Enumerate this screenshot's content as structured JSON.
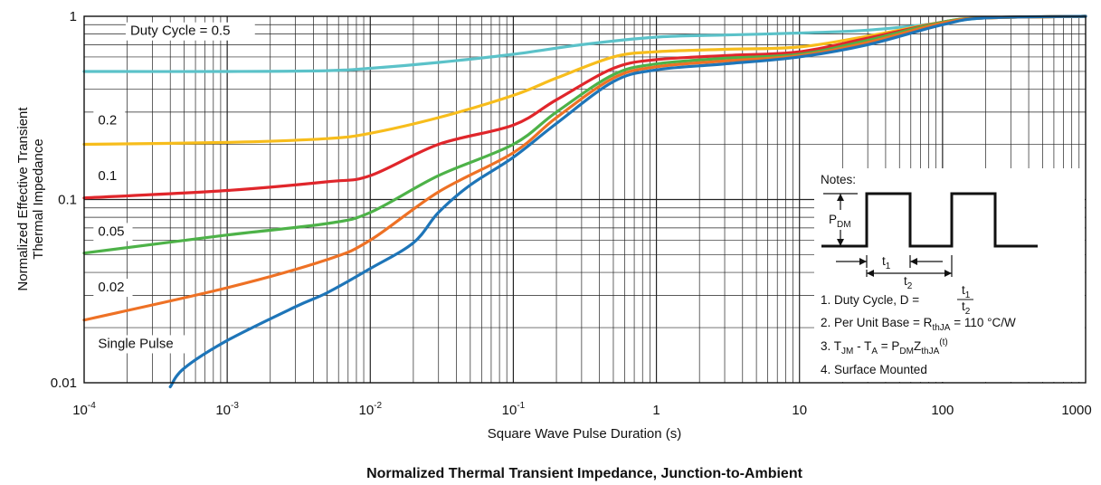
{
  "chart_data": {
    "type": "line",
    "title": "Normalized Thermal Transient Impedance, Junction-to-Ambient",
    "xlabel": "Square Wave Pulse Duration (s)",
    "ylabel_line1": "Normalized Effective Transient",
    "ylabel_line2": "Thermal Impedance",
    "x_scale": "log",
    "y_scale": "log",
    "xlim": [
      0.0001,
      1000
    ],
    "ylim": [
      0.01,
      1
    ],
    "grid": true,
    "x_ticks": [
      {
        "value": 0.0001,
        "base": "10",
        "exp": "-4"
      },
      {
        "value": 0.001,
        "base": "10",
        "exp": "-3"
      },
      {
        "value": 0.01,
        "base": "10",
        "exp": "-2"
      },
      {
        "value": 0.1,
        "base": "10",
        "exp": "-1"
      },
      {
        "value": 1,
        "base": "1",
        "exp": ""
      },
      {
        "value": 10,
        "base": "10",
        "exp": ""
      },
      {
        "value": 100,
        "base": "100",
        "exp": ""
      },
      {
        "value": 1000,
        "base": "1000",
        "exp": ""
      }
    ],
    "y_ticks": [
      {
        "value": 1,
        "label": "1"
      },
      {
        "value": 0.1,
        "label": "0.1"
      },
      {
        "value": 0.01,
        "label": "0.01"
      }
    ],
    "series": [
      {
        "name": "Duty Cycle = 0.5",
        "color": "#5bc2c9",
        "points": [
          [
            0.0001,
            0.5
          ],
          [
            0.001,
            0.5
          ],
          [
            0.005,
            0.505
          ],
          [
            0.01,
            0.52
          ],
          [
            0.03,
            0.56
          ],
          [
            0.1,
            0.62
          ],
          [
            0.3,
            0.7
          ],
          [
            1,
            0.77
          ],
          [
            3,
            0.79
          ],
          [
            10,
            0.81
          ],
          [
            30,
            0.84
          ],
          [
            100,
            0.92
          ],
          [
            200,
            0.98
          ],
          [
            1000,
            1.0
          ]
        ]
      },
      {
        "name": "0.2",
        "color": "#f7bd1c",
        "points": [
          [
            0.0001,
            0.2
          ],
          [
            0.001,
            0.205
          ],
          [
            0.005,
            0.215
          ],
          [
            0.01,
            0.23
          ],
          [
            0.03,
            0.28
          ],
          [
            0.1,
            0.37
          ],
          [
            0.2,
            0.46
          ],
          [
            0.5,
            0.6
          ],
          [
            1,
            0.64
          ],
          [
            3,
            0.66
          ],
          [
            10,
            0.68
          ],
          [
            30,
            0.78
          ],
          [
            100,
            0.93
          ],
          [
            200,
            0.98
          ],
          [
            1000,
            1.0
          ]
        ]
      },
      {
        "name": "0.1",
        "color": "#e0262b",
        "points": [
          [
            0.0001,
            0.102
          ],
          [
            0.001,
            0.112
          ],
          [
            0.005,
            0.125
          ],
          [
            0.01,
            0.135
          ],
          [
            0.03,
            0.2
          ],
          [
            0.1,
            0.255
          ],
          [
            0.2,
            0.35
          ],
          [
            0.5,
            0.52
          ],
          [
            1,
            0.58
          ],
          [
            3,
            0.61
          ],
          [
            10,
            0.64
          ],
          [
            30,
            0.76
          ],
          [
            100,
            0.93
          ],
          [
            200,
            0.98
          ],
          [
            1000,
            1.0
          ]
        ]
      },
      {
        "name": "0.05",
        "color": "#4db248",
        "points": [
          [
            0.0001,
            0.051
          ],
          [
            0.001,
            0.064
          ],
          [
            0.005,
            0.074
          ],
          [
            0.01,
            0.085
          ],
          [
            0.03,
            0.135
          ],
          [
            0.1,
            0.2
          ],
          [
            0.2,
            0.3
          ],
          [
            0.5,
            0.48
          ],
          [
            1,
            0.55
          ],
          [
            3,
            0.59
          ],
          [
            10,
            0.62
          ],
          [
            30,
            0.74
          ],
          [
            100,
            0.93
          ],
          [
            200,
            0.98
          ],
          [
            1000,
            1.0
          ]
        ]
      },
      {
        "name": "0.02",
        "color": "#ee7125",
        "points": [
          [
            0.0001,
            0.022
          ],
          [
            0.001,
            0.033
          ],
          [
            0.005,
            0.047
          ],
          [
            0.01,
            0.06
          ],
          [
            0.03,
            0.11
          ],
          [
            0.1,
            0.18
          ],
          [
            0.2,
            0.28
          ],
          [
            0.5,
            0.46
          ],
          [
            1,
            0.53
          ],
          [
            3,
            0.57
          ],
          [
            10,
            0.61
          ],
          [
            30,
            0.72
          ],
          [
            100,
            0.92
          ],
          [
            200,
            0.98
          ],
          [
            1000,
            1.0
          ]
        ]
      },
      {
        "name": "Single Pulse",
        "color": "#1e75b8",
        "points": [
          [
            0.0004,
            0.0095
          ],
          [
            0.0005,
            0.012
          ],
          [
            0.001,
            0.017
          ],
          [
            0.003,
            0.026
          ],
          [
            0.005,
            0.031
          ],
          [
            0.01,
            0.042
          ],
          [
            0.02,
            0.058
          ],
          [
            0.03,
            0.085
          ],
          [
            0.05,
            0.12
          ],
          [
            0.1,
            0.17
          ],
          [
            0.2,
            0.26
          ],
          [
            0.5,
            0.44
          ],
          [
            1,
            0.51
          ],
          [
            3,
            0.55
          ],
          [
            10,
            0.6
          ],
          [
            30,
            0.7
          ],
          [
            100,
            0.9
          ],
          [
            200,
            0.98
          ],
          [
            1000,
            1.0
          ]
        ]
      }
    ],
    "curve_labels": [
      {
        "text": "Duty Cycle = 0.5",
        "x": 0.00021,
        "y": 0.79
      },
      {
        "text": "0.2",
        "x": 0.000125,
        "y": 0.257
      },
      {
        "text": "0.1",
        "x": 0.000125,
        "y": 0.128
      },
      {
        "text": "0.05",
        "x": 0.000125,
        "y": 0.0635
      },
      {
        "text": "0.02",
        "x": 0.000125,
        "y": 0.0315
      },
      {
        "text": "Single Pulse",
        "x": 0.000125,
        "y": 0.0155
      }
    ]
  },
  "notes": {
    "heading": "Notes:",
    "pdm_base": "P",
    "pdm_sub": "DM",
    "t1_base": "t",
    "t1_sub": "1",
    "t2_base": "t",
    "t2_sub": "2",
    "note1_text": "1. Duty Cycle, D =",
    "note1_num": "t",
    "note1_num_sub": "1",
    "note1_den": "t",
    "note1_den_sub": "2",
    "note2_text": "2. Per Unit Base = R",
    "note2_sub": "thJA",
    "note2_tail": " = 110 °C/W",
    "note3_a": "3. T",
    "note3_a_sub": "JM",
    "note3_b": " - T",
    "note3_b_sub": "A",
    "note3_c": " = P",
    "note3_c_sub": "DM",
    "note3_d": "Z",
    "note3_d_sub": "thJA",
    "note3_sup": "(t)",
    "note4": "4. Surface Mounted"
  }
}
